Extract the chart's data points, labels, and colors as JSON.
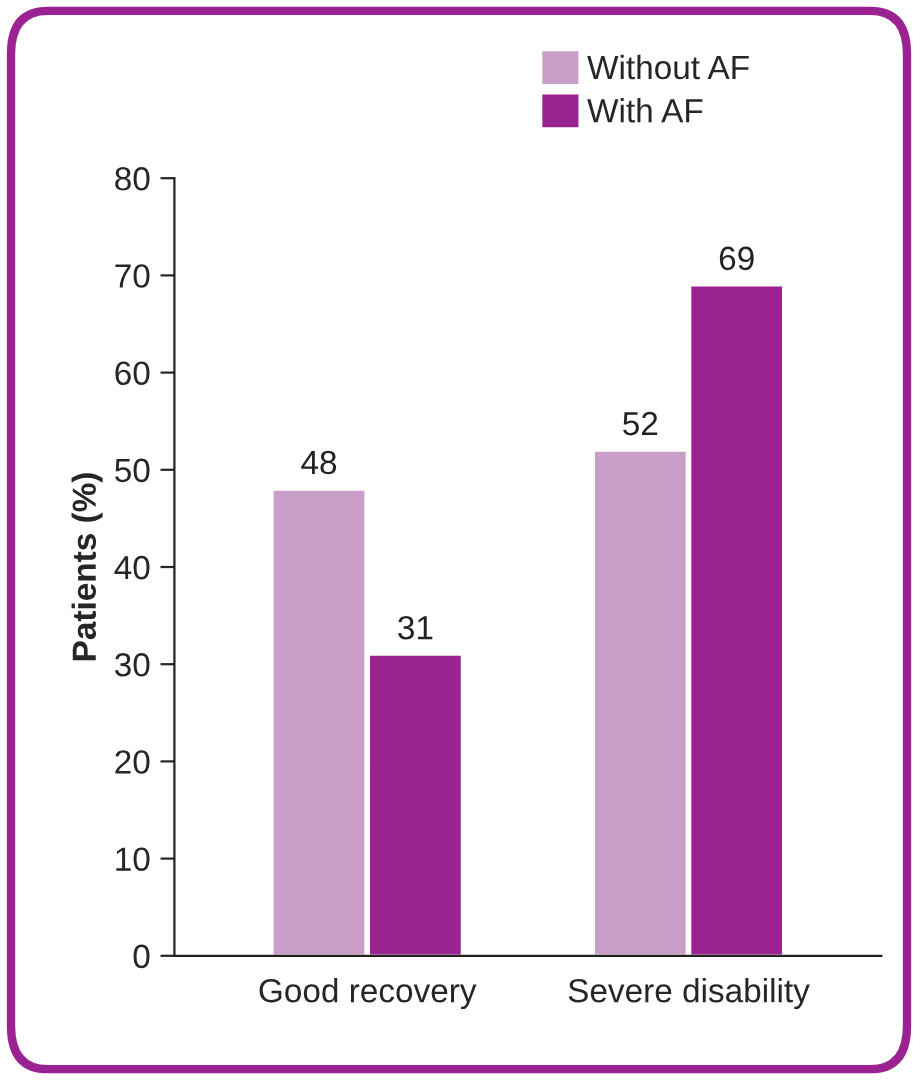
{
  "chart_data": {
    "type": "bar",
    "ylabel": "Patients (%)",
    "categories": [
      "Good recovery",
      "Severe disability"
    ],
    "series": [
      {
        "name": "Without AF",
        "color": "#c99fc9",
        "values": [
          48,
          52
        ]
      },
      {
        "name": "With AF",
        "color": "#9b2391",
        "values": [
          31,
          69
        ]
      }
    ],
    "ylim": [
      0,
      80
    ],
    "yticks": [
      0,
      10,
      20,
      30,
      40,
      50,
      60,
      70,
      80
    ],
    "data_labels": true,
    "legend": "top",
    "grid": false
  }
}
